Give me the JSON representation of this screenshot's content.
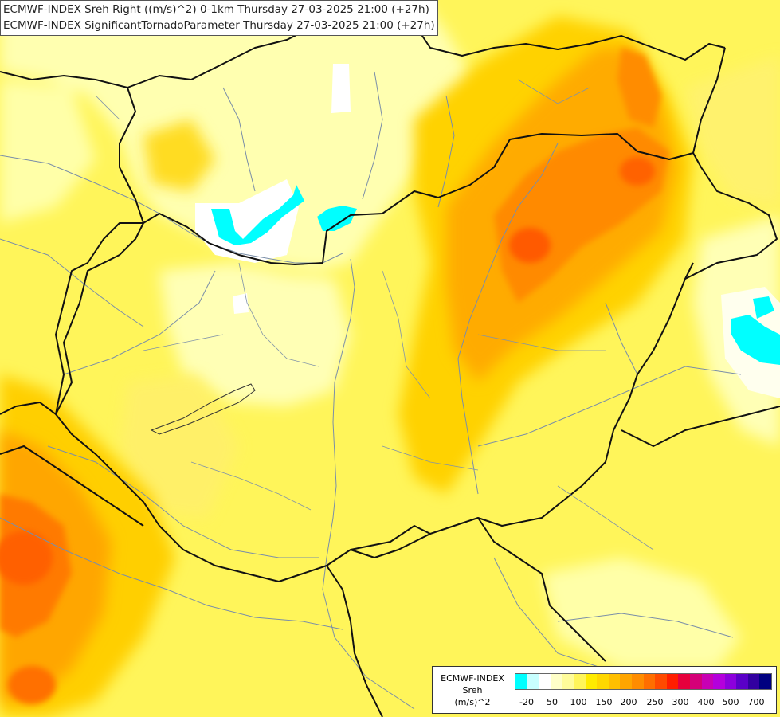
{
  "titles": {
    "line1": "ECMWF-INDEX Sreh Right ((m/s)^2) 0-1km Thursday 27-03-2025 21:00 (+27h)",
    "line2": "ECMWF-INDEX SignificantTornadoParameter Thursday 27-03-2025 21:00 (+27h)"
  },
  "legend": {
    "line1": "ECMWF-INDEX",
    "line2": "Sreh",
    "line3": "(m/s)^2",
    "colors": [
      "#00ffff",
      "#c8ffff",
      "#ffffff",
      "#ffffc8",
      "#fffc9a",
      "#fff55a",
      "#ffeb00",
      "#ffd700",
      "#ffbf00",
      "#ffa500",
      "#ff8c00",
      "#ff6e00",
      "#ff4a00",
      "#ff1e00",
      "#e6003c",
      "#d40078",
      "#c800b4",
      "#b400dc",
      "#8c00dc",
      "#5a00c8",
      "#3200a0",
      "#000080"
    ],
    "tick_labels": [
      "-20",
      "50",
      "100",
      "150",
      "200",
      "250",
      "300",
      "400",
      "500",
      "700"
    ]
  }
}
